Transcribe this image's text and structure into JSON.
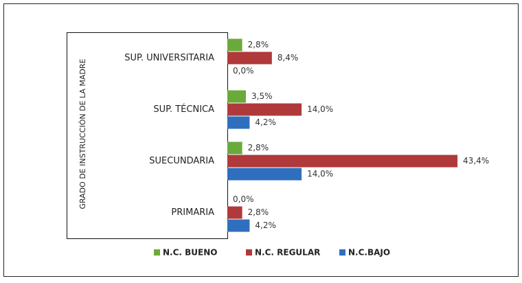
{
  "chart_data": {
    "type": "hbar",
    "y_label": "GRADO DE INSTRUCCIÓN DE LA MADRE",
    "categories": [
      "SUP. UNIVERSITARIA",
      "SUP. TÉCNICA",
      "SUECUNDARIA",
      "PRIMARIA"
    ],
    "series": [
      {
        "name": "N.C. BUENO",
        "color": "#6aaa3a",
        "values": [
          2.8,
          3.5,
          2.8,
          0.0
        ],
        "value_labels": [
          "2,8%",
          "3,5%",
          "2,8%",
          "0,0%"
        ]
      },
      {
        "name": "N.C. REGULAR",
        "color": "#b0393b",
        "values": [
          8.4,
          14.0,
          43.4,
          2.8
        ],
        "value_labels": [
          "8,4%",
          "14,0%",
          "43,4%",
          "2,8%"
        ]
      },
      {
        "name": "N.C.BAJO",
        "color": "#2f6fbe",
        "values": [
          0.0,
          4.2,
          14.0,
          4.2
        ],
        "value_labels": [
          "0,0%",
          "4,2%",
          "14,0%",
          "4,2%"
        ]
      }
    ],
    "legend": "bottom"
  }
}
